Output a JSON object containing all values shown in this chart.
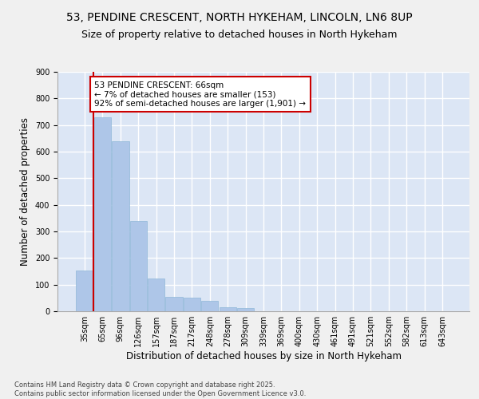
{
  "title1": "53, PENDINE CRESCENT, NORTH HYKEHAM, LINCOLN, LN6 8UP",
  "title2": "Size of property relative to detached houses in North Hykeham",
  "xlabel": "Distribution of detached houses by size in North Hykeham",
  "ylabel": "Number of detached properties",
  "categories": [
    "35sqm",
    "65sqm",
    "96sqm",
    "126sqm",
    "157sqm",
    "187sqm",
    "217sqm",
    "248sqm",
    "278sqm",
    "309sqm",
    "339sqm",
    "369sqm",
    "400sqm",
    "430sqm",
    "461sqm",
    "491sqm",
    "521sqm",
    "552sqm",
    "582sqm",
    "613sqm",
    "643sqm"
  ],
  "values": [
    153,
    728,
    638,
    338,
    122,
    55,
    50,
    38,
    15,
    12,
    0,
    0,
    0,
    0,
    0,
    0,
    0,
    0,
    0,
    0,
    0
  ],
  "bar_color": "#aec6e8",
  "bar_edge_color": "#8fb8d8",
  "background_color": "#dce6f5",
  "grid_color": "#ffffff",
  "annotation_box_color": "#cc0000",
  "annotation_text": "53 PENDINE CRESCENT: 66sqm\n← 7% of detached houses are smaller (153)\n92% of semi-detached houses are larger (1,901) →",
  "vline_x": 0.5,
  "vline_color": "#cc0000",
  "ylim": [
    0,
    900
  ],
  "yticks": [
    0,
    100,
    200,
    300,
    400,
    500,
    600,
    700,
    800,
    900
  ],
  "footer": "Contains HM Land Registry data © Crown copyright and database right 2025.\nContains public sector information licensed under the Open Government Licence v3.0.",
  "title_fontsize": 10,
  "subtitle_fontsize": 9,
  "tick_fontsize": 7,
  "xlabel_fontsize": 8.5,
  "ylabel_fontsize": 8.5,
  "fig_bg": "#f0f0f0"
}
